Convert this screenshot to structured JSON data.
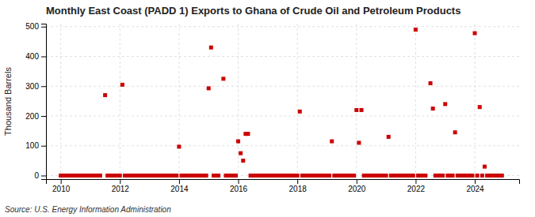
{
  "chart_data": {
    "type": "scatter",
    "title": "Monthly East Coast (PADD 1) Exports to Ghana of Crude Oil and Petroleum Products",
    "ylabel": "Thousand Barrels",
    "annotations": [
      "Source: U.S. Energy Information Administration"
    ],
    "color": "#cc0000",
    "marker": "square",
    "grid": true,
    "xlim": [
      2009.5,
      2025.5
    ],
    "ylim": [
      -12,
      510
    ],
    "xticks": [
      2010,
      2012,
      2014,
      2016,
      2018,
      2020,
      2022,
      2024
    ],
    "yticks": [
      0,
      100,
      200,
      300,
      400,
      500
    ],
    "x": [
      2010.0,
      2010.083,
      2010.167,
      2010.25,
      2010.333,
      2010.417,
      2010.5,
      2010.583,
      2010.667,
      2010.75,
      2010.833,
      2010.917,
      2011.0,
      2011.083,
      2011.167,
      2011.25,
      2011.333,
      2011.5,
      2011.583,
      2011.667,
      2011.75,
      2011.833,
      2011.917,
      2012.0,
      2012.083,
      2012.167,
      2012.25,
      2012.333,
      2012.417,
      2012.5,
      2012.583,
      2012.667,
      2012.75,
      2012.833,
      2012.917,
      2013.0,
      2013.083,
      2013.167,
      2013.25,
      2013.333,
      2013.417,
      2013.5,
      2013.583,
      2013.667,
      2013.75,
      2013.833,
      2013.917,
      2014.0,
      2014.083,
      2014.167,
      2014.25,
      2014.333,
      2014.417,
      2014.5,
      2014.583,
      2014.667,
      2014.75,
      2014.833,
      2014.917,
      2015.0,
      2015.083,
      2015.167,
      2015.25,
      2015.333,
      2015.5,
      2015.583,
      2015.667,
      2015.75,
      2015.833,
      2015.917,
      2016.0,
      2016.083,
      2016.167,
      2016.25,
      2016.333,
      2016.417,
      2016.5,
      2016.583,
      2016.667,
      2016.75,
      2016.833,
      2016.917,
      2017.0,
      2017.083,
      2017.167,
      2017.25,
      2017.333,
      2017.417,
      2017.5,
      2017.583,
      2017.667,
      2017.75,
      2017.833,
      2017.917,
      2018.0,
      2018.083,
      2018.167,
      2018.25,
      2018.333,
      2018.417,
      2018.5,
      2018.583,
      2018.667,
      2018.75,
      2018.833,
      2018.917,
      2019.0,
      2019.083,
      2019.167,
      2019.25,
      2019.333,
      2019.417,
      2019.5,
      2019.583,
      2019.667,
      2019.75,
      2019.833,
      2019.917,
      2020.0,
      2020.083,
      2020.167,
      2020.25,
      2020.333,
      2020.417,
      2020.5,
      2020.583,
      2020.667,
      2020.75,
      2020.833,
      2020.917,
      2021.0,
      2021.083,
      2021.167,
      2021.25,
      2021.333,
      2021.417,
      2021.5,
      2021.583,
      2021.667,
      2021.75,
      2021.833,
      2021.917,
      2022.0,
      2022.083,
      2022.167,
      2022.25,
      2022.333,
      2022.5,
      2022.583,
      2022.667,
      2022.75,
      2022.833,
      2022.917,
      2023.0,
      2023.083,
      2023.167,
      2023.25,
      2023.333,
      2023.417,
      2023.5,
      2023.583,
      2023.667,
      2023.75,
      2023.833,
      2023.917,
      2024.0,
      2024.083,
      2024.167,
      2024.25,
      2024.333,
      2024.417,
      2024.5,
      2024.583,
      2024.667,
      2024.75,
      2024.833,
      2024.917
    ],
    "values": [
      0,
      0,
      0,
      0,
      0,
      0,
      0,
      0,
      0,
      0,
      0,
      0,
      0,
      0,
      0,
      0,
      0,
      270,
      0,
      0,
      0,
      0,
      0,
      0,
      305,
      0,
      0,
      0,
      0,
      0,
      0,
      0,
      0,
      0,
      0,
      0,
      0,
      0,
      0,
      0,
      0,
      0,
      0,
      0,
      0,
      0,
      0,
      97,
      0,
      0,
      0,
      0,
      0,
      0,
      0,
      0,
      0,
      0,
      0,
      293,
      430,
      0,
      0,
      0,
      325,
      0,
      0,
      0,
      0,
      0,
      115,
      75,
      50,
      140,
      140,
      0,
      0,
      0,
      0,
      0,
      0,
      0,
      0,
      0,
      0,
      0,
      0,
      0,
      0,
      0,
      0,
      0,
      0,
      0,
      0,
      215,
      0,
      0,
      0,
      0,
      0,
      0,
      0,
      0,
      0,
      0,
      0,
      0,
      115,
      0,
      0,
      0,
      0,
      0,
      0,
      0,
      0,
      0,
      220,
      110,
      220,
      0,
      0,
      0,
      0,
      0,
      0,
      0,
      0,
      0,
      0,
      130,
      0,
      0,
      0,
      0,
      0,
      0,
      0,
      0,
      0,
      0,
      490,
      0,
      0,
      0,
      0,
      310,
      225,
      0,
      0,
      0,
      0,
      240,
      0,
      0,
      0,
      145,
      0,
      0,
      0,
      0,
      0,
      0,
      0,
      478,
      0,
      230,
      0,
      30,
      0,
      0,
      0,
      0,
      0,
      0,
      0
    ]
  }
}
